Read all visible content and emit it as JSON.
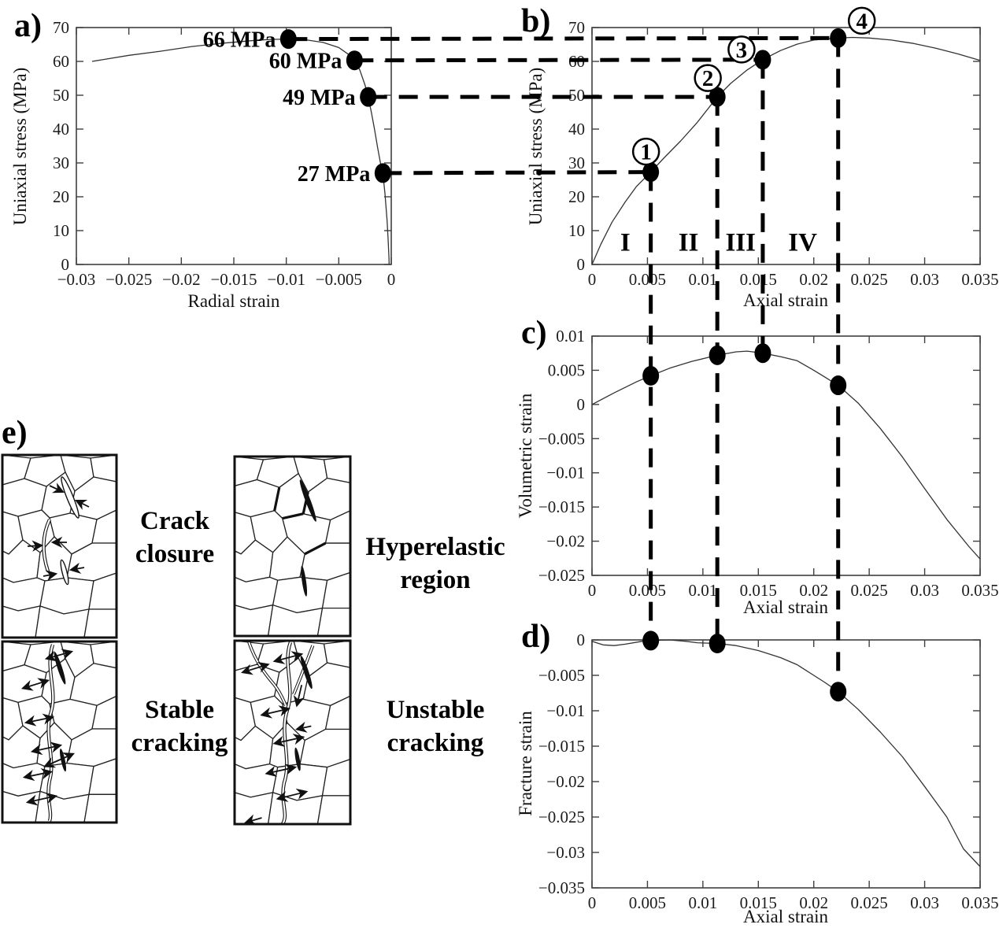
{
  "figure": {
    "panel_labels": {
      "a": "a)",
      "b": "b)",
      "c": "c)",
      "d": "d)",
      "e": "e)"
    },
    "annotations": {
      "stress_labels": [
        "66 MPa",
        "60 MPa",
        "49 MPa",
        "27 MPa"
      ],
      "stage_numbers": [
        "1",
        "2",
        "3",
        "4"
      ],
      "region_labels": [
        "I",
        "II",
        "III",
        "IV"
      ],
      "diagram_captions": [
        [
          "Crack",
          "closure"
        ],
        [
          "Hyperelastic",
          "region"
        ],
        [
          "Stable",
          "cracking"
        ],
        [
          "Unstable",
          "cracking"
        ]
      ],
      "stage_drop_targets": [
        {
          "panel": "d",
          "point": 0
        },
        {
          "panel": "d",
          "point": 1
        },
        {
          "panel": "c",
          "point": 2
        },
        {
          "panel": "d",
          "point": 2
        }
      ]
    }
  },
  "chart_data": [
    {
      "id": "a",
      "type": "line",
      "title": "",
      "xlabel": "Radial strain",
      "ylabel": "Uniaxial stress (MPa)",
      "xlim": [
        -0.03,
        0
      ],
      "ylim": [
        0,
        70
      ],
      "xticks": [
        -0.03,
        -0.025,
        -0.02,
        -0.015,
        -0.01,
        -0.005,
        0
      ],
      "yticks": [
        0,
        10,
        20,
        30,
        40,
        50,
        60,
        70
      ],
      "grid": false,
      "series": [
        {
          "name": "uniaxial stress vs radial strain",
          "points": [
            [
              -0.0285,
              60
            ],
            [
              -0.025,
              61.8
            ],
            [
              -0.022,
              63
            ],
            [
              -0.019,
              64.4
            ],
            [
              -0.016,
              65.4
            ],
            [
              -0.013,
              66.2
            ],
            [
              -0.0115,
              66.5
            ],
            [
              -0.0098,
              66.6
            ],
            [
              -0.008,
              66.3
            ],
            [
              -0.0065,
              65.6
            ],
            [
              -0.005,
              64.1
            ],
            [
              -0.004,
              61.9
            ],
            [
              -0.0035,
              60.3
            ],
            [
              -0.003,
              57.5
            ],
            [
              -0.0025,
              53
            ],
            [
              -0.0022,
              49.5
            ],
            [
              -0.0019,
              45
            ],
            [
              -0.0016,
              40
            ],
            [
              -0.0013,
              34.5
            ],
            [
              -0.001,
              29.5
            ],
            [
              -0.0008,
              27
            ],
            [
              -0.0006,
              21
            ],
            [
              -0.0004,
              13
            ],
            [
              -0.0003,
              7.5
            ],
            [
              -0.00022,
              2
            ],
            [
              -0.0002,
              0
            ]
          ]
        }
      ],
      "marked_points": [
        {
          "label": "66 MPa",
          "x": -0.0098,
          "y": 66.6
        },
        {
          "label": "60 MPa",
          "x": -0.0035,
          "y": 60.3
        },
        {
          "label": "49 MPa",
          "x": -0.0022,
          "y": 49.5
        },
        {
          "label": "27 MPa",
          "x": -0.0008,
          "y": 27
        }
      ]
    },
    {
      "id": "b",
      "type": "line",
      "title": "",
      "xlabel": "Axial strain",
      "ylabel": "Uniaxial stress (MPa)",
      "xlim": [
        0,
        0.035
      ],
      "ylim": [
        0,
        70
      ],
      "xticks": [
        0,
        0.005,
        0.01,
        0.015,
        0.02,
        0.025,
        0.03,
        0.035
      ],
      "yticks": [
        0,
        10,
        20,
        30,
        40,
        50,
        60,
        70
      ],
      "grid": false,
      "series": [
        {
          "name": "uniaxial stress vs axial strain",
          "points": [
            [
              0,
              0
            ],
            [
              0.0008,
              6
            ],
            [
              0.0018,
              12.5
            ],
            [
              0.003,
              18.5
            ],
            [
              0.004,
              23
            ],
            [
              0.0053,
              27.3
            ],
            [
              0.0065,
              31.5
            ],
            [
              0.008,
              36.5
            ],
            [
              0.0095,
              42
            ],
            [
              0.0113,
              49.5
            ],
            [
              0.0125,
              53.5
            ],
            [
              0.014,
              57.5
            ],
            [
              0.0154,
              60.5
            ],
            [
              0.017,
              63.2
            ],
            [
              0.0185,
              65.1
            ],
            [
              0.02,
              66.3
            ],
            [
              0.0222,
              66.9
            ],
            [
              0.0235,
              67.1
            ],
            [
              0.025,
              66.9
            ],
            [
              0.027,
              66.3
            ],
            [
              0.029,
              65.3
            ],
            [
              0.031,
              63.9
            ],
            [
              0.033,
              62.2
            ],
            [
              0.035,
              60.3
            ]
          ]
        }
      ],
      "marked_points": [
        {
          "label": "1",
          "x": 0.0053,
          "y": 27.3
        },
        {
          "label": "2",
          "x": 0.0113,
          "y": 49.5
        },
        {
          "label": "3",
          "x": 0.0154,
          "y": 60.5
        },
        {
          "label": "4",
          "x": 0.0222,
          "y": 66.9
        }
      ],
      "regions": {
        "labels": [
          "I",
          "II",
          "III",
          "IV"
        ],
        "x": [
          0.003,
          0.0087,
          0.0134,
          0.019
        ],
        "y": 5
      }
    },
    {
      "id": "c",
      "type": "line",
      "title": "",
      "xlabel": "Axial strain",
      "ylabel": "Volumetric strain",
      "xlim": [
        0,
        0.035
      ],
      "ylim": [
        -0.025,
        0.01
      ],
      "xticks": [
        0,
        0.005,
        0.01,
        0.015,
        0.02,
        0.025,
        0.03,
        0.035
      ],
      "yticks": [
        0.01,
        0.005,
        0,
        -0.005,
        -0.01,
        -0.015,
        -0.02,
        -0.025
      ],
      "grid": false,
      "series": [
        {
          "name": "volumetric strain vs axial strain",
          "points": [
            [
              0,
              0
            ],
            [
              0.002,
              0.0017
            ],
            [
              0.004,
              0.0033
            ],
            [
              0.0053,
              0.0042
            ],
            [
              0.007,
              0.0053
            ],
            [
              0.009,
              0.0063
            ],
            [
              0.0113,
              0.0072
            ],
            [
              0.013,
              0.0077
            ],
            [
              0.014,
              0.0078
            ],
            [
              0.0154,
              0.0075
            ],
            [
              0.017,
              0.007
            ],
            [
              0.0185,
              0.0064
            ],
            [
              0.02,
              0.005
            ],
            [
              0.021,
              0.004
            ],
            [
              0.0222,
              0.0028
            ],
            [
              0.024,
              0.0002
            ],
            [
              0.026,
              -0.0035
            ],
            [
              0.028,
              -0.0077
            ],
            [
              0.03,
              -0.0123
            ],
            [
              0.032,
              -0.0168
            ],
            [
              0.034,
              -0.0208
            ],
            [
              0.035,
              -0.0226
            ]
          ]
        }
      ],
      "marked_points": [
        {
          "x": 0.0053,
          "y": 0.0042
        },
        {
          "x": 0.0113,
          "y": 0.0072
        },
        {
          "x": 0.0154,
          "y": 0.0075
        },
        {
          "x": 0.0222,
          "y": 0.0028
        }
      ]
    },
    {
      "id": "d",
      "type": "line",
      "title": "",
      "xlabel": "Axial strain",
      "ylabel": "Fracture strain",
      "xlim": [
        0,
        0.035
      ],
      "ylim": [
        -0.035,
        0
      ],
      "xticks": [
        0,
        0.005,
        0.01,
        0.015,
        0.02,
        0.025,
        0.03,
        0.035
      ],
      "yticks": [
        0,
        -0.005,
        -0.01,
        -0.015,
        -0.02,
        -0.025,
        -0.03,
        -0.035
      ],
      "grid": false,
      "series": [
        {
          "name": "fracture strain vs axial strain",
          "points": [
            [
              0,
              -0.0002
            ],
            [
              0.001,
              -0.0007
            ],
            [
              0.002,
              -0.0008
            ],
            [
              0.003,
              -0.0006
            ],
            [
              0.0045,
              -0.0002
            ],
            [
              0.0053,
              -0.0001
            ],
            [
              0.007,
              0
            ],
            [
              0.0085,
              -0.0002
            ],
            [
              0.0095,
              -0.0004
            ],
            [
              0.0113,
              -0.0005
            ],
            [
              0.013,
              -0.0008
            ],
            [
              0.015,
              -0.0015
            ],
            [
              0.017,
              -0.0025
            ],
            [
              0.0185,
              -0.0035
            ],
            [
              0.02,
              -0.005
            ],
            [
              0.021,
              -0.006
            ],
            [
              0.0222,
              -0.0073
            ],
            [
              0.024,
              -0.0098
            ],
            [
              0.026,
              -0.013
            ],
            [
              0.028,
              -0.0165
            ],
            [
              0.03,
              -0.0207
            ],
            [
              0.032,
              -0.025
            ],
            [
              0.0335,
              -0.0295
            ],
            [
              0.035,
              -0.032
            ]
          ]
        }
      ],
      "marked_points": [
        {
          "x": 0.0053,
          "y": -0.0001
        },
        {
          "x": 0.0113,
          "y": -0.0005
        },
        {
          "x": 0.0222,
          "y": -0.0073
        }
      ]
    }
  ]
}
